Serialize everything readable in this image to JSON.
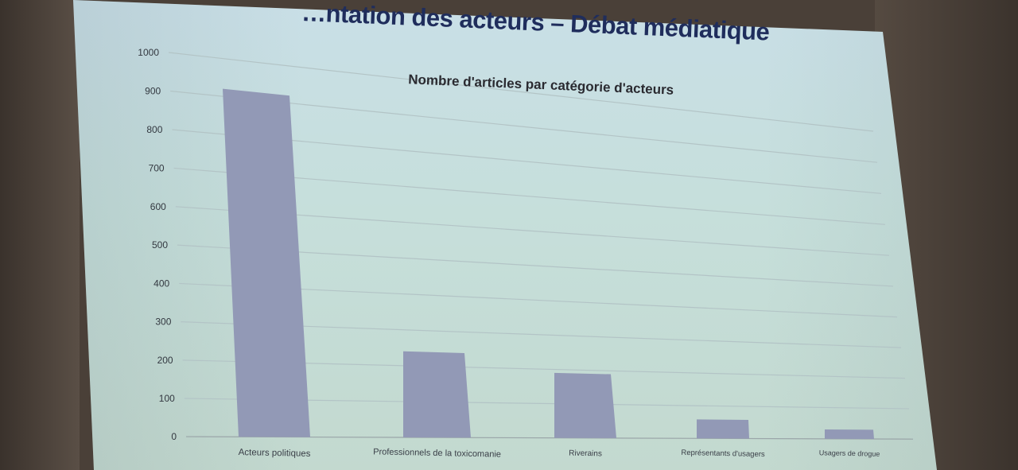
{
  "slide": {
    "title": "…ntation des acteurs – Débat médiatique"
  },
  "chart_data": {
    "type": "bar",
    "title": "Nombre d'articles par catégorie d'acteurs",
    "xlabel": "",
    "ylabel": "",
    "ylim": [
      0,
      1000
    ],
    "yticks": [
      0,
      100,
      200,
      300,
      400,
      500,
      600,
      700,
      800,
      900,
      1000
    ],
    "grid": true,
    "categories": [
      "Acteurs politiques",
      "Professionnels de la toxicomanie",
      "Riverains",
      "Représentants d'usagers",
      "Usagers de drogue"
    ],
    "values": [
      920,
      240,
      190,
      58,
      30
    ],
    "bar_color": "#9299b6"
  }
}
